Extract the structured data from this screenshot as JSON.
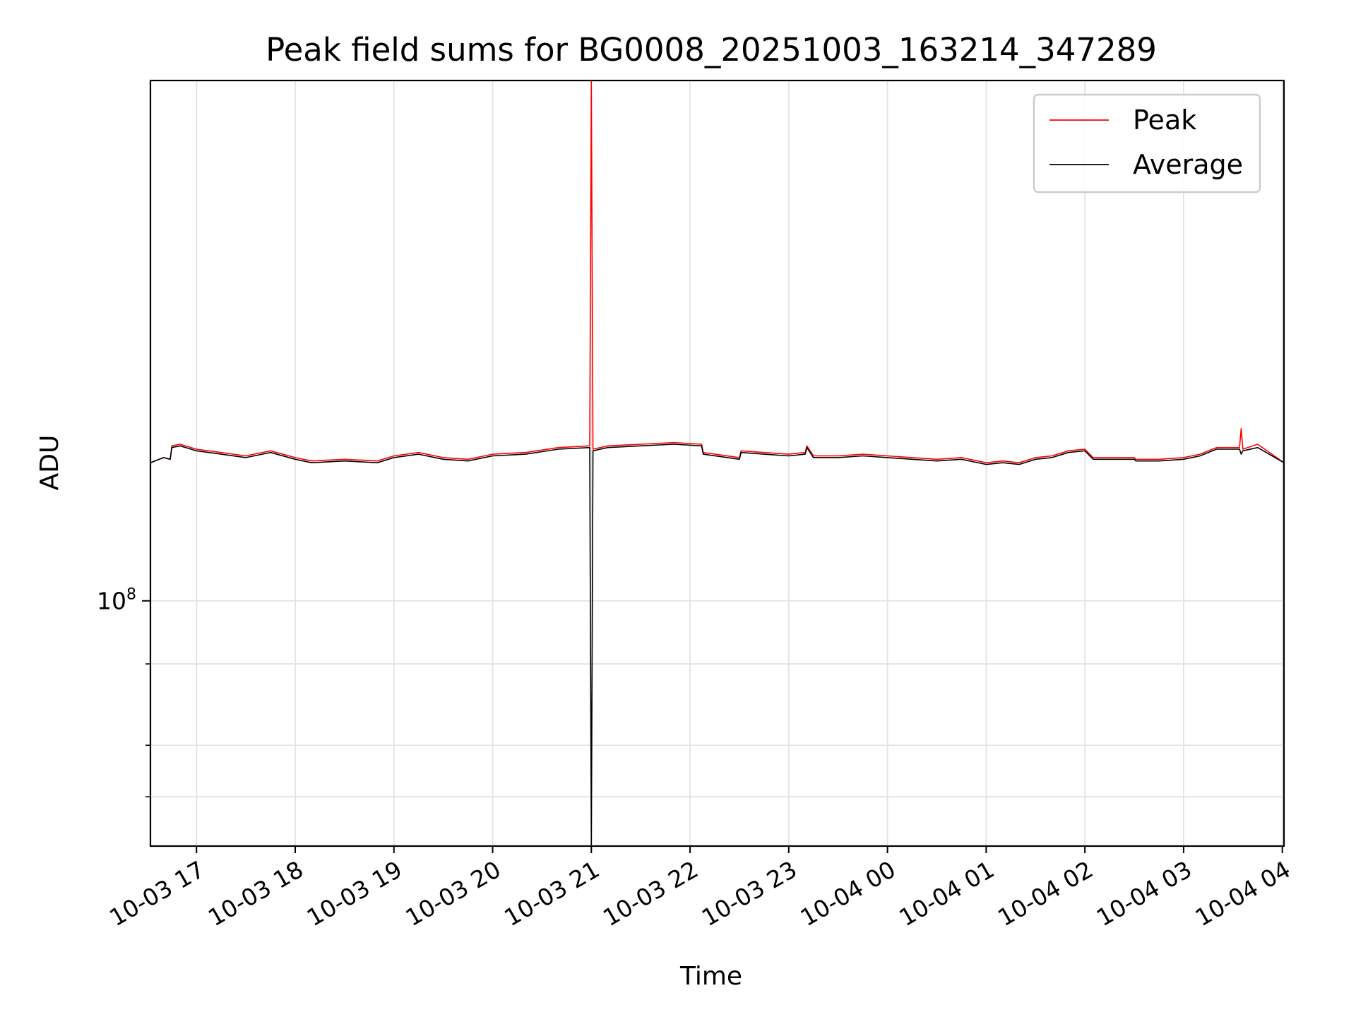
{
  "chart_data": {
    "type": "line",
    "title": "Peak field sums for BG0008_20251003_163214_347289",
    "xlabel": "Time",
    "ylabel": "ADU",
    "y_scale": "log",
    "ylim": [
      42000000,
      630000000
    ],
    "xlim": [
      "2025-10-03 16:32",
      "2025-10-04 04:01"
    ],
    "grid": true,
    "legend_position": "upper right",
    "x_tick_labels": [
      "10-03 17",
      "10-03 18",
      "10-03 19",
      "10-03 20",
      "10-03 21",
      "10-03 22",
      "10-03 23",
      "10-04 00",
      "10-04 01",
      "10-04 02",
      "10-04 03",
      "10-04 04"
    ],
    "x_tick_times": [
      "2025-10-03 17:00",
      "2025-10-03 18:00",
      "2025-10-03 19:00",
      "2025-10-03 20:00",
      "2025-10-03 21:00",
      "2025-10-03 22:00",
      "2025-10-03 23:00",
      "2025-10-04 00:00",
      "2025-10-04 01:00",
      "2025-10-04 02:00",
      "2025-10-04 03:00",
      "2025-10-04 04:00"
    ],
    "y_tick_label": {
      "base": "10",
      "exp": "8",
      "value": 100000000
    },
    "y_minor_ticks": [
      50000000,
      60000000,
      80000000
    ],
    "series": [
      {
        "name": "Peak",
        "color": "#ff0000",
        "x": [
          "2025-10-03 16:32",
          "2025-10-03 16:40",
          "2025-10-03 16:44",
          "2025-10-03 16:45",
          "2025-10-03 16:50",
          "2025-10-03 17:00",
          "2025-10-03 17:15",
          "2025-10-03 17:30",
          "2025-10-03 17:45",
          "2025-10-03 18:00",
          "2025-10-03 18:10",
          "2025-10-03 18:30",
          "2025-10-03 18:50",
          "2025-10-03 19:00",
          "2025-10-03 19:15",
          "2025-10-03 19:30",
          "2025-10-03 19:45",
          "2025-10-03 20:00",
          "2025-10-03 20:20",
          "2025-10-03 20:40",
          "2025-10-03 20:59",
          "2025-10-03 21:00",
          "2025-10-03 21:01",
          "2025-10-03 21:10",
          "2025-10-03 21:30",
          "2025-10-03 21:50",
          "2025-10-03 22:07",
          "2025-10-03 22:08",
          "2025-10-03 22:30",
          "2025-10-03 22:31",
          "2025-10-03 22:45",
          "2025-10-03 23:00",
          "2025-10-03 23:10",
          "2025-10-03 23:11",
          "2025-10-03 23:15",
          "2025-10-03 23:30",
          "2025-10-03 23:45",
          "2025-10-04 00:00",
          "2025-10-04 00:15",
          "2025-10-04 00:30",
          "2025-10-04 00:45",
          "2025-10-04 01:00",
          "2025-10-04 01:10",
          "2025-10-04 01:20",
          "2025-10-04 01:30",
          "2025-10-04 01:40",
          "2025-10-04 01:50",
          "2025-10-04 02:00",
          "2025-10-04 02:05",
          "2025-10-04 02:30",
          "2025-10-04 02:31",
          "2025-10-04 02:45",
          "2025-10-04 03:00",
          "2025-10-04 03:10",
          "2025-10-04 03:20",
          "2025-10-04 03:34",
          "2025-10-04 03:35",
          "2025-10-04 03:36",
          "2025-10-04 03:45",
          "2025-10-04 04:01"
        ],
        "y": [
          163000000,
          166000000,
          165000000,
          173000000,
          174000000,
          171000000,
          169000000,
          167000000,
          170000000,
          166000000,
          164000000,
          165000000,
          164000000,
          167000000,
          169000000,
          166000000,
          165000000,
          168000000,
          169000000,
          172000000,
          173000000,
          630000000,
          171000000,
          173000000,
          174000000,
          175000000,
          174000000,
          169000000,
          166000000,
          170000000,
          169000000,
          168000000,
          169000000,
          173000000,
          167000000,
          167000000,
          168000000,
          167000000,
          166000000,
          165000000,
          166000000,
          163000000,
          164000000,
          163000000,
          166000000,
          167000000,
          170000000,
          171000000,
          166000000,
          166000000,
          165000000,
          165000000,
          166000000,
          168000000,
          172000000,
          172000000,
          184000000,
          171000000,
          174000000,
          163000000
        ]
      },
      {
        "name": "Average",
        "color": "#000000",
        "x": [
          "2025-10-03 16:32",
          "2025-10-03 16:40",
          "2025-10-03 16:44",
          "2025-10-03 16:45",
          "2025-10-03 16:50",
          "2025-10-03 17:00",
          "2025-10-03 17:15",
          "2025-10-03 17:30",
          "2025-10-03 17:45",
          "2025-10-03 18:00",
          "2025-10-03 18:10",
          "2025-10-03 18:30",
          "2025-10-03 18:50",
          "2025-10-03 19:00",
          "2025-10-03 19:15",
          "2025-10-03 19:30",
          "2025-10-03 19:45",
          "2025-10-03 20:00",
          "2025-10-03 20:20",
          "2025-10-03 20:40",
          "2025-10-03 20:59",
          "2025-10-03 21:00",
          "2025-10-03 21:01",
          "2025-10-03 21:10",
          "2025-10-03 21:30",
          "2025-10-03 21:50",
          "2025-10-03 22:07",
          "2025-10-03 22:08",
          "2025-10-03 22:30",
          "2025-10-03 22:31",
          "2025-10-03 22:45",
          "2025-10-03 23:00",
          "2025-10-03 23:10",
          "2025-10-03 23:11",
          "2025-10-03 23:15",
          "2025-10-03 23:30",
          "2025-10-03 23:45",
          "2025-10-04 00:00",
          "2025-10-04 00:15",
          "2025-10-04 00:30",
          "2025-10-04 00:45",
          "2025-10-04 01:00",
          "2025-10-04 01:10",
          "2025-10-04 01:20",
          "2025-10-04 01:30",
          "2025-10-04 01:40",
          "2025-10-04 01:50",
          "2025-10-04 02:00",
          "2025-10-04 02:05",
          "2025-10-04 02:30",
          "2025-10-04 02:31",
          "2025-10-04 02:45",
          "2025-10-04 03:00",
          "2025-10-04 03:10",
          "2025-10-04 03:20",
          "2025-10-04 03:34",
          "2025-10-04 03:35",
          "2025-10-04 03:36",
          "2025-10-04 03:45",
          "2025-10-04 04:01"
        ],
        "y": [
          163000000,
          166000000,
          165000000,
          172000000,
          173000000,
          170000000,
          168000000,
          166000000,
          169000000,
          165000000,
          163000000,
          164000000,
          163000000,
          166000000,
          168000000,
          165000000,
          164000000,
          167000000,
          168000000,
          171000000,
          172000000,
          42000000,
          170000000,
          172000000,
          173000000,
          174000000,
          173000000,
          168000000,
          165000000,
          169000000,
          168000000,
          167000000,
          168000000,
          172000000,
          166000000,
          166000000,
          167000000,
          166000000,
          165000000,
          164000000,
          165000000,
          162000000,
          163000000,
          162000000,
          165000000,
          166000000,
          169000000,
          170000000,
          165000000,
          165000000,
          164000000,
          164000000,
          165000000,
          167000000,
          171000000,
          171000000,
          168000000,
          170000000,
          172000000,
          163000000
        ]
      }
    ]
  }
}
